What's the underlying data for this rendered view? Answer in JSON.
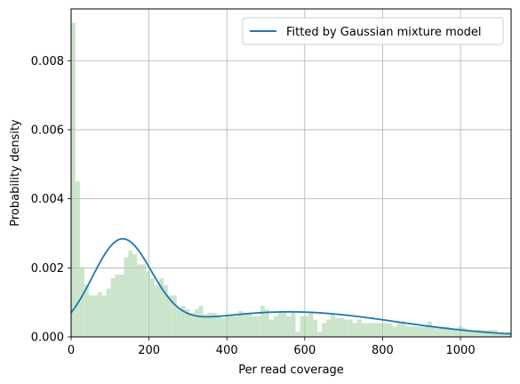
{
  "chart_data": {
    "type": "bar",
    "xlabel": "Per read coverage",
    "ylabel": "Probability density",
    "xlim": [
      0,
      1130
    ],
    "ylim": [
      0,
      0.0095
    ],
    "x_ticks": [
      0,
      200,
      400,
      600,
      800,
      1000
    ],
    "y_ticks": [
      0.0,
      0.002,
      0.004,
      0.006,
      0.008
    ],
    "y_tick_labels": [
      "0.000",
      "0.002",
      "0.004",
      "0.006",
      "0.008"
    ],
    "grid": true,
    "legend_position": "upper-right",
    "histogram": {
      "color": "#a9d3a9",
      "bin_width": 11.3,
      "bin_start": 0,
      "values": [
        0.0091,
        0.0045,
        0.002,
        0.0015,
        0.0012,
        0.0012,
        0.0013,
        0.0012,
        0.0014,
        0.0017,
        0.0018,
        0.0018,
        0.0023,
        0.0025,
        0.0024,
        0.0021,
        0.0021,
        0.0019,
        0.0017,
        0.0015,
        0.0017,
        0.0015,
        0.0012,
        0.0012,
        0.00085,
        0.0009,
        0.0008,
        0.0007,
        0.0008,
        0.0009,
        0.00065,
        0.0007,
        0.0007,
        0.0006,
        0.00055,
        0.0006,
        0.0006,
        0.0006,
        0.00075,
        0.0007,
        0.0007,
        0.0006,
        0.0006,
        0.0009,
        0.0008,
        0.0005,
        0.0006,
        0.0007,
        0.0007,
        0.0006,
        0.0007,
        0.00015,
        0.0006,
        0.0006,
        0.0007,
        0.0005,
        0.00015,
        0.0004,
        0.0005,
        0.00065,
        0.00055,
        0.00055,
        0.0005,
        0.0005,
        0.0004,
        0.0005,
        0.0004,
        0.0004,
        0.0004,
        0.0004,
        0.0004,
        0.0004,
        0.0004,
        0.0003,
        0.0004,
        0.00045,
        0.0003,
        0.0003,
        0.0003,
        0.0003,
        0.0003,
        0.00045,
        0.0003,
        0.00025,
        0.0003,
        0.0003,
        0.00025,
        0.00025,
        0.0003,
        0.00025,
        0.0002,
        0.0002,
        0.0002,
        0.0002,
        0.0002,
        0.0002,
        0.0002,
        0.0001,
        0.0001,
        0.00015
      ]
    },
    "series": [
      {
        "name": "Fitted by Gaussian mixture model",
        "color": "#1f77b4",
        "components": [
          {
            "weight": 0.5,
            "mean": 130,
            "sd": 76
          },
          {
            "weight": 0.5,
            "mean": 560,
            "sd": 275
          }
        ]
      }
    ]
  }
}
